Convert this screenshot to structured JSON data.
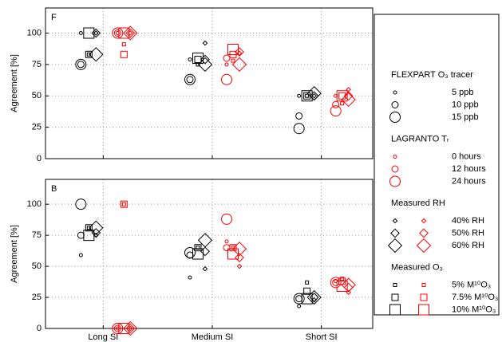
{
  "chart_data": {
    "type": "scatter",
    "panels": [
      "F",
      "B"
    ],
    "categories": [
      "Long SI",
      "Medium SI",
      "Short SI"
    ],
    "ylabel": "Agreement [%]",
    "ylim": [
      0,
      120
    ],
    "yticks": [
      0,
      25,
      50,
      75,
      100
    ],
    "grid": true,
    "groups": [
      {
        "title": "FLEXPART O₃ tracer",
        "marker": "circle",
        "entries": [
          {
            "name": "5 ppb",
            "series": [
              {
                "color": "#000000",
                "values": [
                  [
                    100,
                    79,
                    50
                  ],
                  [
                    59,
                    41,
                    18
                  ]
                ]
              }
            ]
          },
          {
            "name": "10 ppb",
            "series": [
              {
                "color": "#000000",
                "values": [
                  [
                    75,
                    63,
                    34
                  ],
                  [
                    75,
                    59,
                    24
                  ]
                ]
              }
            ]
          },
          {
            "name": "15 ppb",
            "series": [
              {
                "color": "#000000",
                "values": [
                  [
                    75,
                    63,
                    24
                  ],
                  [
                    100,
                    61,
                    24
                  ]
                ]
              }
            ]
          }
        ]
      },
      {
        "title": "LAGRANTO Tᵣ",
        "marker": "circle",
        "entries": [
          {
            "name": "0 hours",
            "series": [
              {
                "color": "#ff0000",
                "values": [
                  [
                    100,
                    75,
                    50
                  ],
                  [
                    0,
                    70,
                    38
                  ]
                ]
              }
            ]
          },
          {
            "name": "12 hours",
            "series": [
              {
                "color": "#ff0000",
                "values": [
                  [
                    100,
                    80,
                    43
                  ],
                  [
                    0,
                    65,
                    37
                  ]
                ]
              }
            ]
          },
          {
            "name": "24 hours",
            "series": [
              {
                "color": "#ff0000",
                "values": [
                  [
                    100,
                    63,
                    38
                  ],
                  [
                    0,
                    88,
                    37
                  ]
                ]
              }
            ]
          }
        ]
      },
      {
        "title": "Measured RH",
        "marker": "diamond",
        "entries": [
          {
            "name": "40% RH",
            "series": [
              {
                "color": "#000000",
                "values": [
                  [
                    100,
                    92,
                    50
                  ],
                  [
                    75,
                    48,
                    23
                  ]
                ]
              },
              {
                "color": "#ff0000",
                "values": [
                  [
                    100,
                    84,
                    55
                  ],
                  [
                    0,
                    50,
                    29
                  ]
                ]
              }
            ]
          },
          {
            "name": "50% RH",
            "series": [
              {
                "color": "#000000",
                "values": [
                  [
                    100,
                    79,
                    50
                  ],
                  [
                    77,
                    62,
                    25
                  ]
                ]
              },
              {
                "color": "#ff0000",
                "values": [
                  [
                    100,
                    85,
                    50
                  ],
                  [
                    0,
                    57,
                    33
                  ]
                ]
              }
            ]
          },
          {
            "name": "60% RH",
            "series": [
              {
                "color": "#000000",
                "values": [
                  [
                    83,
                    75,
                    52
                  ],
                  [
                    81,
                    71,
                    25
                  ]
                ]
              },
              {
                "color": "#ff0000",
                "values": [
                  [
                    100,
                    75,
                    47
                  ],
                  [
                    0,
                    64,
                    35
                  ]
                ]
              }
            ]
          }
        ]
      },
      {
        "title": "Measured O₃",
        "marker": "square",
        "entries": [
          {
            "name": "5% M¹⁰O₃",
            "series": [
              {
                "color": "#000000",
                "values": [
                  [
                    83,
                    75,
                    50
                  ],
                  [
                    81,
                    65,
                    37
                  ]
                ]
              },
              {
                "color": "#ff0000",
                "values": [
                  [
                    91,
                    78,
                    44
                  ],
                  [
                    100,
                    65,
                    40
                  ]
                ]
              }
            ]
          },
          {
            "name": "7.5% M¹⁰O₃",
            "series": [
              {
                "color": "#000000",
                "values": [
                  [
                    83,
                    79,
                    50
                  ],
                  [
                    81,
                    65,
                    30
                  ]
                ]
              },
              {
                "color": "#ff0000",
                "values": [
                  [
                    83,
                    83,
                    50
                  ],
                  [
                    100,
                    65,
                    38
                  ]
                ]
              }
            ]
          },
          {
            "name": "10% M¹⁰O₃",
            "series": [
              {
                "color": "#000000",
                "values": [
                  [
                    100,
                    80,
                    50
                  ],
                  [
                    75,
                    60,
                    24
                  ]
                ]
              },
              {
                "color": "#ff0000",
                "values": [
                  [
                    100,
                    87,
                    50
                  ],
                  [
                    0,
                    60,
                    34
                  ]
                ]
              }
            ]
          }
        ]
      }
    ]
  }
}
